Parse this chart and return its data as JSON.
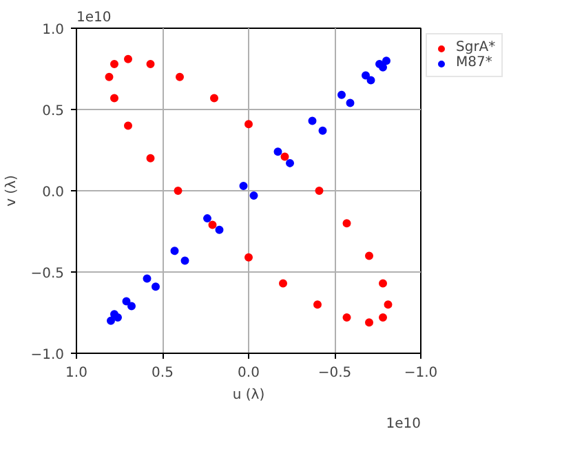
{
  "chart_data": {
    "type": "scatter",
    "xlabel": "u (λ)",
    "ylabel": "v (λ)",
    "xlim": [
      1.0,
      -1.0
    ],
    "ylim": [
      -1.0,
      1.0
    ],
    "xticks": [
      {
        "value": 1.0,
        "label": "1.0"
      },
      {
        "value": 0.5,
        "label": "0.5"
      },
      {
        "value": 0,
        "label": "0.0"
      },
      {
        "value": -0.5,
        "label": "−0.5"
      },
      {
        "value": -1.0,
        "label": "−1.0"
      }
    ],
    "yticks": [
      {
        "value": -1.0,
        "label": "−1.0"
      },
      {
        "value": -0.5,
        "label": "−0.5"
      },
      {
        "value": 0,
        "label": "0.0"
      },
      {
        "value": 0.5,
        "label": "0.5"
      },
      {
        "value": 1.0,
        "label": "1.0"
      }
    ],
    "annotations": [
      "1e10",
      "1e10"
    ],
    "grid": true,
    "legend": "top right",
    "marker": "circle",
    "series": [
      {
        "name": "SgrA*",
        "color": "#ff0000",
        "x": [
          0.78,
          0.7,
          0.57,
          0.4,
          0.2,
          0.0,
          -0.21,
          -0.41,
          -0.57,
          -0.7,
          -0.78,
          -0.81,
          -0.78,
          -0.7,
          -0.57,
          -0.4,
          -0.2,
          0.0,
          0.21,
          0.41,
          0.57,
          0.7,
          0.78,
          0.81
        ],
        "values": [
          0.78,
          0.81,
          0.78,
          0.7,
          0.57,
          0.41,
          0.21,
          0.0,
          -0.2,
          -0.4,
          -0.57,
          -0.7,
          -0.78,
          -0.81,
          -0.78,
          -0.7,
          -0.57,
          -0.41,
          -0.21,
          0.0,
          0.2,
          0.4,
          0.57,
          0.7
        ]
      },
      {
        "name": "M87*",
        "color": "#0000ff",
        "x": [
          -0.8,
          -0.76,
          -0.68,
          -0.54,
          -0.37,
          -0.17,
          0.03,
          0.24,
          0.43,
          0.59,
          0.71,
          0.78,
          0.8,
          0.76,
          0.68,
          0.54,
          0.37,
          0.17,
          -0.03,
          -0.24,
          -0.43,
          -0.59,
          -0.71,
          -0.78
        ],
        "values": [
          0.8,
          0.78,
          0.71,
          0.59,
          0.43,
          0.24,
          0.03,
          -0.17,
          -0.37,
          -0.54,
          -0.68,
          -0.76,
          -0.8,
          -0.78,
          -0.71,
          -0.59,
          -0.43,
          -0.24,
          -0.03,
          0.17,
          0.37,
          0.54,
          0.68,
          0.76
        ]
      }
    ]
  }
}
